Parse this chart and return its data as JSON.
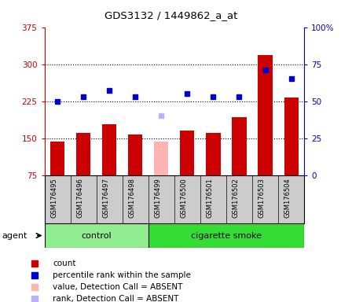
{
  "title": "GDS3132 / 1449862_a_at",
  "samples": [
    "GSM176495",
    "GSM176496",
    "GSM176497",
    "GSM176498",
    "GSM176499",
    "GSM176500",
    "GSM176501",
    "GSM176502",
    "GSM176503",
    "GSM176504"
  ],
  "bar_values": [
    143,
    160,
    178,
    158,
    143,
    165,
    160,
    193,
    318,
    232
  ],
  "bar_colors": [
    "#cc0000",
    "#cc0000",
    "#cc0000",
    "#cc0000",
    "#ffb3b3",
    "#cc0000",
    "#cc0000",
    "#cc0000",
    "#cc0000",
    "#cc0000"
  ],
  "rank_values": [
    50,
    53,
    57,
    53,
    40,
    55,
    53,
    53,
    71,
    65
  ],
  "rank_colors": [
    "#0000cc",
    "#0000cc",
    "#0000cc",
    "#0000cc",
    "#b3b3ff",
    "#0000cc",
    "#0000cc",
    "#0000cc",
    "#0000cc",
    "#0000cc"
  ],
  "ylim_left": [
    75,
    375
  ],
  "ylim_right": [
    0,
    100
  ],
  "yticks_left": [
    75,
    150,
    225,
    300,
    375
  ],
  "yticks_right": [
    0,
    25,
    50,
    75,
    100
  ],
  "groups": [
    {
      "label": "control",
      "indices": [
        0,
        1,
        2,
        3
      ],
      "color": "#90ee90"
    },
    {
      "label": "cigarette smoke",
      "indices": [
        4,
        5,
        6,
        7,
        8,
        9
      ],
      "color": "#33dd33"
    }
  ],
  "agent_label": "agent",
  "left_axis_color": "#cc0000",
  "right_axis_color": "#0000cc",
  "plot_bg_color": "#ffffff",
  "sample_bg_color": "#cccccc",
  "legend_items": [
    {
      "color": "#cc0000",
      "label": "count"
    },
    {
      "color": "#0000cc",
      "label": "percentile rank within the sample"
    },
    {
      "color": "#ffb3b3",
      "label": "value, Detection Call = ABSENT"
    },
    {
      "color": "#b3b3ff",
      "label": "rank, Detection Call = ABSENT"
    }
  ]
}
